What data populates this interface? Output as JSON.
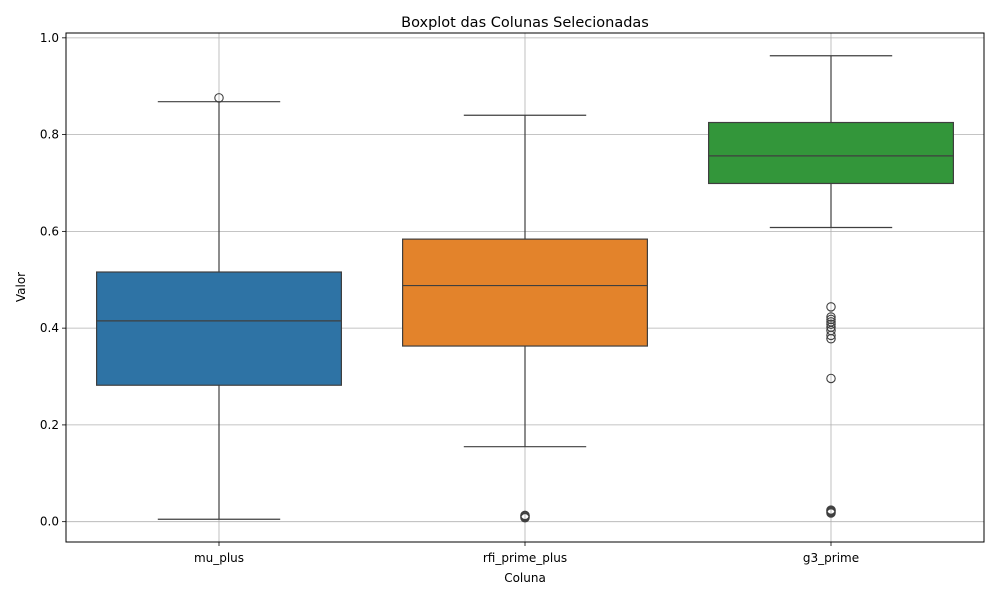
{
  "chart_data": {
    "type": "boxplot",
    "title": "Boxplot das Colunas Selecionadas",
    "xlabel": "Coluna",
    "ylabel": "Valor",
    "categories": [
      "mu_plus",
      "rfi_prime_plus",
      "g3_prime"
    ],
    "ylim": [
      -0.042,
      1.01
    ],
    "yticks": [
      0.0,
      0.2,
      0.4,
      0.6,
      0.8,
      1.0
    ],
    "ytick_labels": [
      "0.0",
      "0.2",
      "0.4",
      "0.6",
      "0.8",
      "1.0"
    ],
    "grid": true,
    "boxes": [
      {
        "category": "mu_plus",
        "color": "#2e73a5",
        "whisker_low": 0.005,
        "q1": 0.282,
        "median": 0.415,
        "q3": 0.516,
        "whisker_high": 0.868,
        "outliers": [
          0.876
        ]
      },
      {
        "category": "rfi_prime_plus",
        "color": "#e3832b",
        "whisker_low": 0.155,
        "q1": 0.363,
        "median": 0.488,
        "q3": 0.584,
        "whisker_high": 0.84,
        "outliers": [
          0.008,
          0.01,
          0.012,
          0.013
        ]
      },
      {
        "category": "g3_prime",
        "color": "#33963a",
        "whisker_low": 0.608,
        "q1": 0.699,
        "median": 0.756,
        "q3": 0.825,
        "whisker_high": 0.963,
        "outliers": [
          0.018,
          0.02,
          0.022,
          0.024,
          0.296,
          0.378,
          0.385,
          0.395,
          0.402,
          0.408,
          0.413,
          0.418,
          0.423,
          0.444
        ]
      }
    ]
  }
}
